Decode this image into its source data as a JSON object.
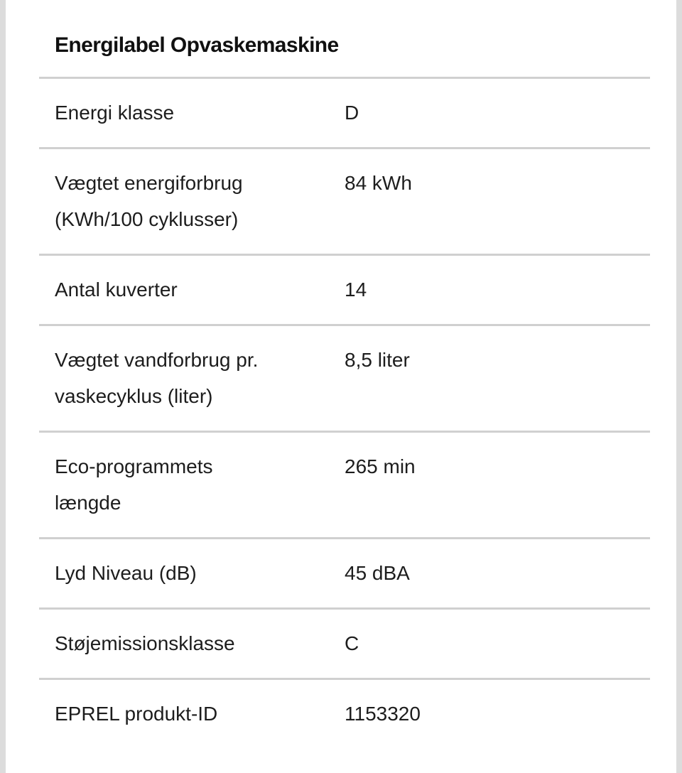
{
  "page": {
    "title": "Energilabel Opvaskemaskine"
  },
  "colors": {
    "text": "#1d1d1d",
    "title-text": "#101010",
    "divider": "#d0d0d0",
    "edge-bar": "#dcdcdc",
    "background": "#ffffff"
  },
  "table": {
    "rows": [
      {
        "label": "Energi klasse",
        "value": "D"
      },
      {
        "label": "Vægtet energiforbrug\n(KWh/100 cyklusser)",
        "value": "84 kWh"
      },
      {
        "label": "Antal kuverter",
        "value": "14"
      },
      {
        "label": "Vægtet vandforbrug pr.\nvaskecyklus (liter)",
        "value": "8,5 liter"
      },
      {
        "label": "Eco-programmets\nlængde",
        "value": "265 min"
      },
      {
        "label": "Lyd Niveau (dB)",
        "value": "45 dBA"
      },
      {
        "label": "Støjemissionsklasse",
        "value": "C"
      },
      {
        "label": "EPREL produkt-ID",
        "value": "1153320"
      }
    ]
  }
}
